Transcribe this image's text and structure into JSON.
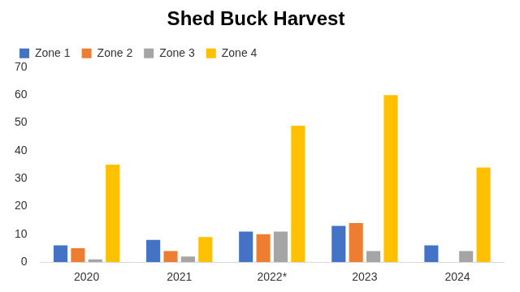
{
  "chart_data": {
    "type": "bar",
    "title": "Shed Buck Harvest",
    "categories": [
      "2020",
      "2021",
      "2022*",
      "2023",
      "2024"
    ],
    "series": [
      {
        "name": "Zone 1",
        "color": "#4472c4",
        "values": [
          6,
          8,
          11,
          13,
          6
        ]
      },
      {
        "name": "Zone 2",
        "color": "#ed7d31",
        "values": [
          5,
          4,
          10,
          14,
          0
        ]
      },
      {
        "name": "Zone 3",
        "color": "#a5a5a5",
        "values": [
          1,
          2,
          11,
          4,
          4
        ]
      },
      {
        "name": "Zone 4",
        "color": "#ffc000",
        "values": [
          35,
          9,
          49,
          60,
          34
        ]
      }
    ],
    "ylim": [
      0,
      70
    ],
    "yticks": [
      0,
      10,
      20,
      30,
      40,
      50,
      60,
      70
    ],
    "grid": false,
    "legend": "upper left"
  }
}
